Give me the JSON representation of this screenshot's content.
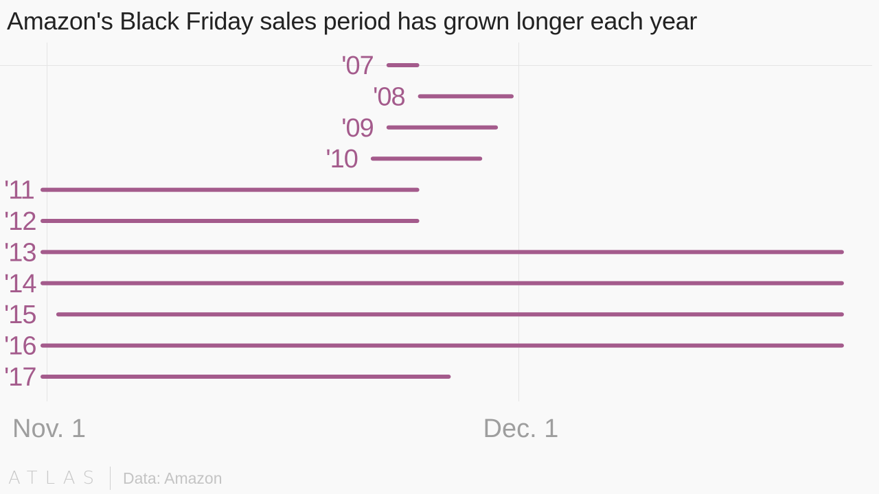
{
  "title": "Amazon's Black Friday sales period has grown longer each year",
  "footer": {
    "brand": "ATLAS",
    "source": "Data: Amazon"
  },
  "colors": {
    "line": "#a45b8c",
    "label": "#a45b8c",
    "grid": "#e4e4e4",
    "axis_text": "#9e9e9e",
    "background": "#f9f9f9"
  },
  "chart_data": {
    "type": "range",
    "title": "Amazon's Black Friday sales period has grown longer each year",
    "x_axis": {
      "unit": "day offset from Nov. 1",
      "range": [
        0,
        51
      ],
      "ticks": [
        {
          "value": 0,
          "label": "Nov. 1"
        },
        {
          "value": 30,
          "label": "Dec. 1"
        }
      ]
    },
    "grid": true,
    "series": [
      {
        "label": "'07",
        "start": 22,
        "end": 24
      },
      {
        "label": "'08",
        "start": 24,
        "end": 30
      },
      {
        "label": "'09",
        "start": 22,
        "end": 29
      },
      {
        "label": "'10",
        "start": 21,
        "end": 28
      },
      {
        "label": "'11",
        "start": 0,
        "end": 24
      },
      {
        "label": "'12",
        "start": 0,
        "end": 24
      },
      {
        "label": "'13",
        "start": 0,
        "end": 51
      },
      {
        "label": "'14",
        "start": 0,
        "end": 51
      },
      {
        "label": "'15",
        "start": 1,
        "end": 51
      },
      {
        "label": "'16",
        "start": 0,
        "end": 51
      },
      {
        "label": "'17",
        "start": 0,
        "end": 26
      }
    ]
  }
}
